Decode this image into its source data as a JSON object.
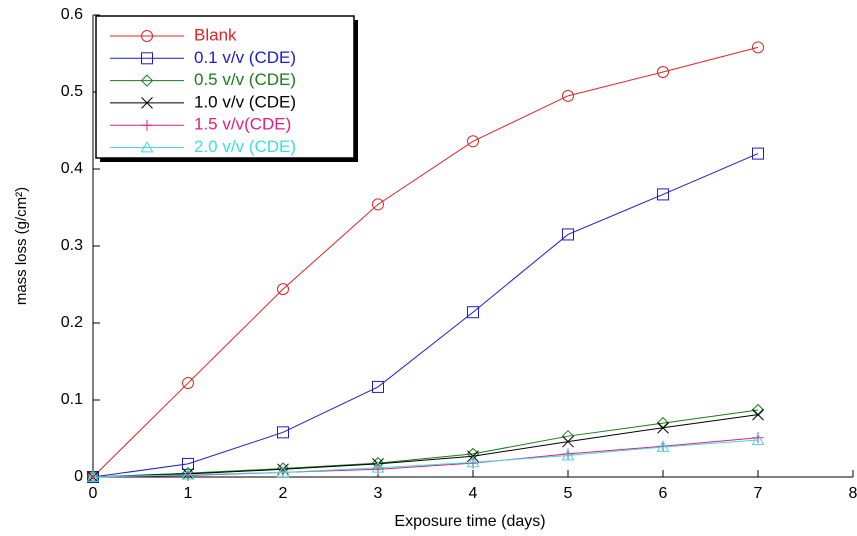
{
  "chart_data": {
    "type": "line",
    "x_label": "Exposure time (days)",
    "y_label": "mass loss (g/cm²)",
    "x": [
      0,
      1,
      2,
      3,
      4,
      5,
      6,
      7
    ],
    "series": [
      {
        "name": "Blank",
        "color": "#e02424",
        "marker": "circle",
        "values": [
          0,
          0.122,
          0.244,
          0.354,
          0.436,
          0.495,
          0.526,
          0.558
        ]
      },
      {
        "name": "0.1 v/v (CDE)",
        "color": "#1c1ccc",
        "marker": "square",
        "values": [
          0,
          0.017,
          0.058,
          0.117,
          0.214,
          0.315,
          0.367,
          0.42
        ]
      },
      {
        "name": "0.5 v/v (CDE)",
        "color": "#1d7a1d",
        "marker": "diamond",
        "values": [
          0,
          0.005,
          0.011,
          0.018,
          0.03,
          0.053,
          0.07,
          0.087
        ]
      },
      {
        "name": "1.0 v/v (CDE)",
        "color": "#000000",
        "marker": "x",
        "values": [
          0,
          0.004,
          0.01,
          0.017,
          0.027,
          0.046,
          0.064,
          0.081
        ]
      },
      {
        "name": "1.5 v/v(CDE)",
        "color": "#e0207a",
        "marker": "plus",
        "values": [
          0,
          0.002,
          0.006,
          0.01,
          0.018,
          0.03,
          0.04,
          0.051
        ]
      },
      {
        "name": "2.0 v/v (CDE)",
        "color": "#40dce0",
        "marker": "triangle",
        "values": [
          0,
          0.003,
          0.006,
          0.012,
          0.019,
          0.028,
          0.039,
          0.048
        ]
      }
    ],
    "xlim": [
      0,
      8
    ],
    "xticks": [
      0,
      1,
      2,
      3,
      4,
      5,
      6,
      7,
      8
    ],
    "ylim": [
      0,
      0.6
    ],
    "yticks": [
      0,
      0.1,
      0.2,
      0.3,
      0.4,
      0.5,
      0.6
    ],
    "legend": "upper left"
  }
}
